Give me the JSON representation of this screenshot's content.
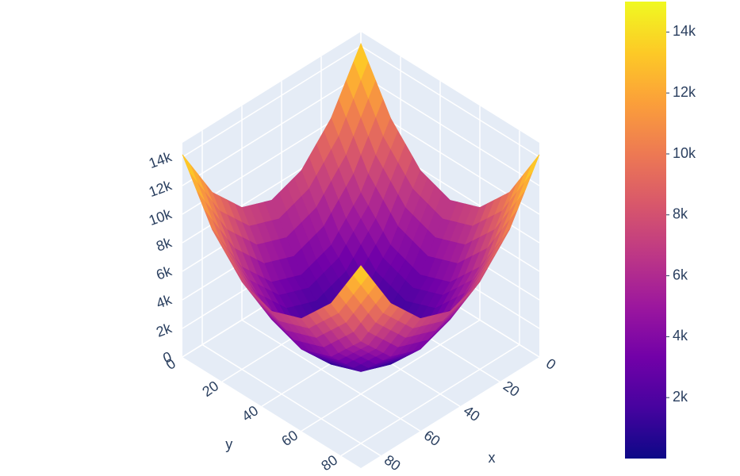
{
  "chart_data": {
    "type": "surface",
    "x": [
      0,
      15,
      30,
      45,
      60,
      75,
      90
    ],
    "y": [
      0,
      15,
      30,
      45,
      60,
      75,
      90
    ],
    "z": [
      [
        14175,
        10238,
        7875,
        7088,
        7875,
        10238,
        14175
      ],
      [
        10238,
        6300,
        3938,
        3150,
        3938,
        6300,
        10238
      ],
      [
        7875,
        3938,
        1575,
        788,
        1575,
        3938,
        7875
      ],
      [
        7088,
        3150,
        788,
        0,
        788,
        3150,
        7088
      ],
      [
        7875,
        3938,
        1575,
        788,
        1575,
        3938,
        7875
      ],
      [
        10238,
        6300,
        3938,
        3150,
        3938,
        6300,
        10238
      ],
      [
        14175,
        10238,
        7875,
        7088,
        7875,
        10238,
        14175
      ]
    ],
    "xlim": [
      0,
      90
    ],
    "ylim": [
      0,
      90
    ],
    "zlim": [
      0,
      15000
    ],
    "xticks": [
      0,
      20,
      40,
      60,
      80
    ],
    "yticks": [
      0,
      20,
      40,
      60,
      80
    ],
    "zticks": [
      0,
      {
        "value": 2000,
        "label": "2k"
      },
      {
        "value": 4000,
        "label": "4k"
      },
      {
        "value": 6000,
        "label": "6k"
      },
      {
        "value": 8000,
        "label": "8k"
      },
      {
        "value": 10000,
        "label": "10k"
      },
      {
        "value": 12000,
        "label": "12k"
      },
      {
        "value": 14000,
        "label": "14k"
      }
    ],
    "xlabel": "x",
    "ylabel": "y",
    "colorbar": {
      "clim": [
        0,
        15000
      ],
      "ticks": [
        {
          "value": 2000,
          "label": "2k"
        },
        {
          "value": 4000,
          "label": "4k"
        },
        {
          "value": 6000,
          "label": "6k"
        },
        {
          "value": 8000,
          "label": "8k"
        },
        {
          "value": 10000,
          "label": "10k"
        },
        {
          "value": 12000,
          "label": "12k"
        },
        {
          "value": 14000,
          "label": "14k"
        }
      ]
    },
    "colorscale": [
      "#0d0887",
      "#46039f",
      "#7201a8",
      "#9c179e",
      "#bd3786",
      "#d8576b",
      "#ed7953",
      "#fb9f3a",
      "#fdca26",
      "#f0f921"
    ],
    "grid": true
  }
}
